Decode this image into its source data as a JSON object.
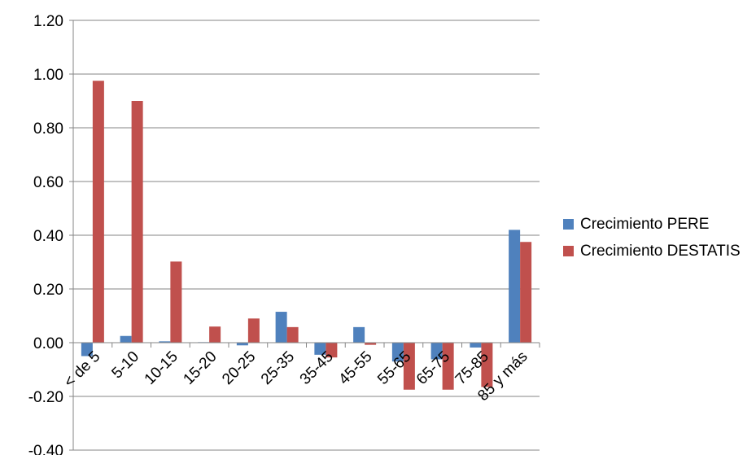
{
  "chart_data": {
    "type": "bar",
    "categories": [
      "< de 5",
      "5-10",
      "10-15",
      "15-20",
      "20-25",
      "25-35",
      "35-45",
      "45-55",
      "55-65",
      "65-75",
      "75-85",
      "85 y más"
    ],
    "series": [
      {
        "name": "Crecimiento PERE",
        "color": "#4F81BD",
        "values": [
          -0.05,
          0.025,
          0.005,
          0.002,
          -0.01,
          0.115,
          -0.045,
          0.058,
          -0.07,
          -0.062,
          -0.018,
          0.42
        ]
      },
      {
        "name": "Crecimiento DESTATIS",
        "color": "#C0504D",
        "values": [
          0.975,
          0.9,
          0.302,
          0.06,
          0.09,
          0.058,
          -0.055,
          -0.008,
          -0.175,
          -0.175,
          -0.165,
          0.375
        ]
      }
    ],
    "yticks": [
      "1.20",
      "1.00",
      "0.80",
      "0.60",
      "0.40",
      "0.20",
      "0.00",
      "-0.20",
      "-0.40"
    ],
    "ylim": [
      -0.4,
      1.2
    ],
    "grid": true,
    "legend_position": "right",
    "title": "",
    "xlabel": "",
    "ylabel": ""
  }
}
